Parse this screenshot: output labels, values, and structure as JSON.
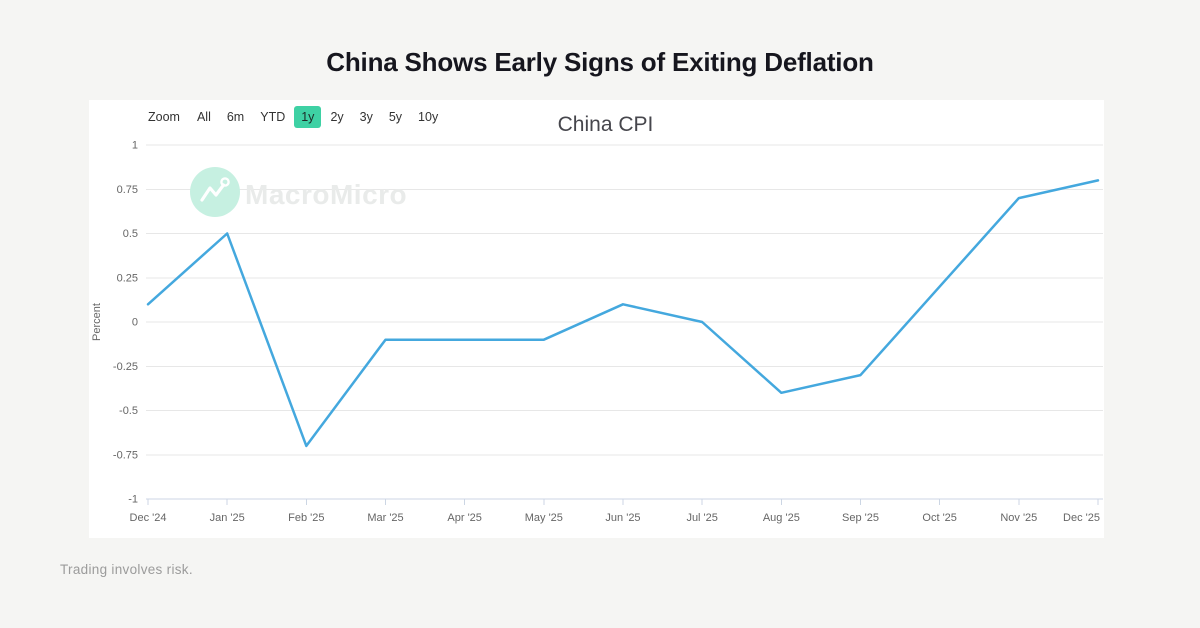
{
  "page": {
    "title": "China Shows Early Signs of Exiting Deflation",
    "footer": "Trading involves risk."
  },
  "toolbar": {
    "zoom_label": "Zoom",
    "buttons": [
      {
        "label": "All",
        "selected": false
      },
      {
        "label": "6m",
        "selected": false
      },
      {
        "label": "YTD",
        "selected": false
      },
      {
        "label": "1y",
        "selected": true
      },
      {
        "label": "2y",
        "selected": false
      },
      {
        "label": "3y",
        "selected": false
      },
      {
        "label": "5y",
        "selected": false
      },
      {
        "label": "10y",
        "selected": false
      }
    ],
    "selected_bg": "#3ed1a4"
  },
  "watermark": {
    "text": "MacroMicro",
    "circle_color": "#c6f0e1"
  },
  "chart_data": {
    "type": "line",
    "title": "China CPI",
    "xlabel": "",
    "ylabel": "Percent",
    "ylim": [
      -1,
      1
    ],
    "ytick_step": 0.25,
    "grid": true,
    "legend": "none",
    "line_color": "#44a8de",
    "categories": [
      "Dec '24",
      "Jan '25",
      "Feb '25",
      "Mar '25",
      "Apr '25",
      "May '25",
      "Jun '25",
      "Jul '25",
      "Aug '25",
      "Sep '25",
      "Oct '25",
      "Nov '25",
      "Dec '25"
    ],
    "values": [
      0.1,
      0.5,
      -0.7,
      -0.1,
      -0.1,
      -0.1,
      0.1,
      0.0,
      -0.4,
      -0.3,
      0.2,
      0.7,
      0.8
    ]
  },
  "colors": {
    "page_bg": "#f5f5f3",
    "card_bg": "#ffffff",
    "grid_line": "#e7e7e7",
    "axis_line": "#ccd6e4",
    "axis_label": "#666666",
    "title_text": "#16161e"
  }
}
